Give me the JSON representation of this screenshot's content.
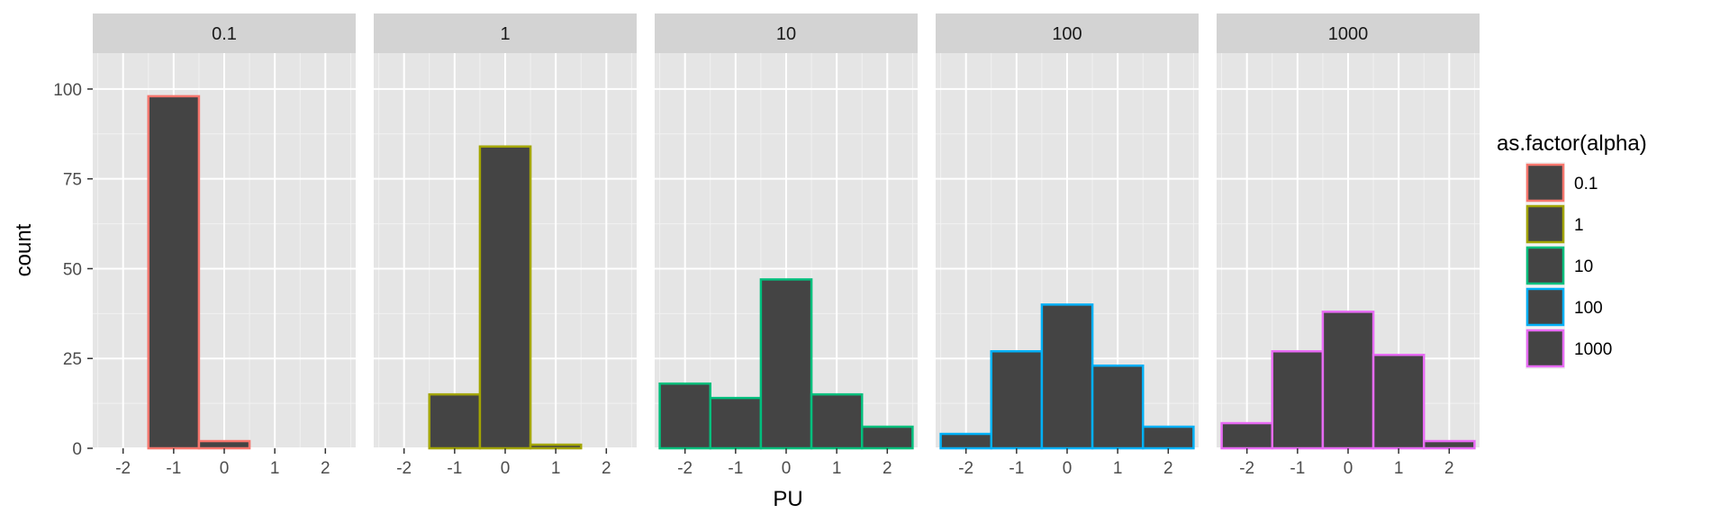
{
  "chart_data": {
    "type": "bar",
    "xlabel": "PU",
    "ylabel": "count",
    "ylim": [
      0,
      110
    ],
    "xlim": [
      -2.6,
      2.6
    ],
    "x_ticks": [
      -2,
      -1,
      0,
      1,
      2
    ],
    "x_tick_labels": [
      "-2",
      "-1",
      "0",
      "1",
      "2"
    ],
    "y_ticks": [
      0,
      25,
      50,
      75,
      100
    ],
    "y_tick_labels": [
      "0",
      "25",
      "50",
      "75",
      "100"
    ],
    "grid": true,
    "legend_position": "right",
    "legend_title": "as.factor(alpha)",
    "bins": [
      -2,
      -1,
      0,
      1,
      2
    ],
    "bin_width": 1,
    "panels": [
      {
        "label": "0.1",
        "color": "#F8766D",
        "values": [
          0,
          98,
          2,
          0,
          0
        ]
      },
      {
        "label": "1",
        "color": "#A3A500",
        "values": [
          0,
          15,
          84,
          1,
          0
        ]
      },
      {
        "label": "10",
        "color": "#00BF7D",
        "values": [
          18,
          14,
          47,
          15,
          6
        ]
      },
      {
        "label": "100",
        "color": "#00B0F6",
        "values": [
          4,
          27,
          40,
          23,
          6
        ]
      },
      {
        "label": "1000",
        "color": "#E76BF3",
        "values": [
          7,
          27,
          38,
          26,
          2
        ]
      }
    ],
    "legend": [
      {
        "label": "0.1",
        "color": "#F8766D"
      },
      {
        "label": "1",
        "color": "#A3A500"
      },
      {
        "label": "10",
        "color": "#00BF7D"
      },
      {
        "label": "100",
        "color": "#00B0F6"
      },
      {
        "label": "1000",
        "color": "#E76BF3"
      }
    ],
    "bar_fill": "#444444",
    "panel_background": "#E5E5E5",
    "strip_background": "#D3D3D3"
  }
}
